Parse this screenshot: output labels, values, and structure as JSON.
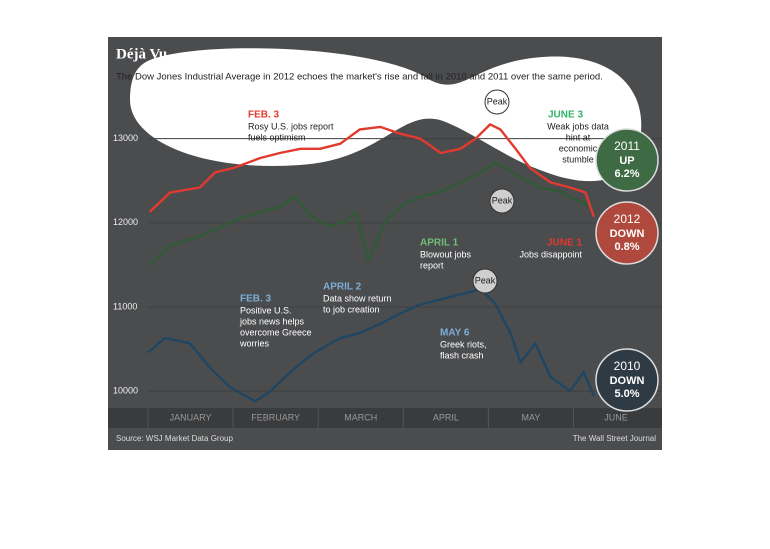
{
  "chart_data": {
    "type": "line",
    "title": "Déjà Vu",
    "subtitle": "The Dow Jones Industrial Average in 2012 echoes the market's rise and fall in 2010 and 2011 over the same period.",
    "source": "Source: WSJ Market Data Group",
    "credit": "The Wall Street Journal",
    "months": [
      "JANUARY",
      "FEBRUARY",
      "MARCH",
      "APRIL",
      "MAY",
      "JUNE"
    ],
    "xlim": [
      0,
      5.3
    ],
    "ylim": [
      9800,
      13400
    ],
    "yticks": [
      10000,
      11000,
      12000,
      13000
    ],
    "grid": true,
    "series": [
      {
        "name": "2011",
        "color": "#2f5a36",
        "x": [
          0.02,
          0.26,
          0.61,
          1.0,
          1.32,
          1.55,
          1.73,
          1.91,
          2.14,
          2.32,
          2.44,
          2.59,
          2.79,
          2.96,
          3.2,
          3.44,
          3.67,
          3.91,
          4.08,
          4.2,
          4.38,
          4.61,
          4.85,
          5.08,
          5.24
        ],
        "values": [
          11500,
          11730,
          11840,
          12020,
          12130,
          12190,
          12310,
          12080,
          11960,
          12020,
          12130,
          11550,
          12020,
          12190,
          12310,
          12370,
          12480,
          12600,
          12710,
          12650,
          12540,
          12420,
          12370,
          12250,
          12180
        ]
      },
      {
        "name": "2010",
        "color": "#1f4763",
        "x": [
          0.0,
          0.2,
          0.49,
          0.73,
          0.96,
          1.26,
          1.44,
          1.55,
          1.73,
          1.96,
          2.26,
          2.49,
          2.73,
          2.96,
          3.2,
          3.44,
          3.67,
          3.91,
          4.08,
          4.26,
          4.38,
          4.55,
          4.73,
          4.96,
          5.12,
          5.24
        ],
        "values": [
          10460,
          10630,
          10570,
          10280,
          10050,
          9880,
          10000,
          10110,
          10280,
          10460,
          10630,
          10690,
          10800,
          10920,
          11030,
          11090,
          11150,
          11210,
          11040,
          10690,
          10340,
          10570,
          10170,
          10000,
          10230,
          9940
        ]
      },
      {
        "name": "2012",
        "color": "#e23a2f",
        "x": [
          0.02,
          0.26,
          0.61,
          0.79,
          1.0,
          1.32,
          1.55,
          1.79,
          2.02,
          2.26,
          2.49,
          2.73,
          2.96,
          3.2,
          3.44,
          3.67,
          3.85,
          4.02,
          4.14,
          4.32,
          4.49,
          4.73,
          4.96,
          5.14,
          5.24
        ],
        "values": [
          12130,
          12360,
          12420,
          12600,
          12650,
          12770,
          12830,
          12880,
          12880,
          12940,
          13110,
          13140,
          13060,
          13000,
          12830,
          12880,
          13000,
          13170,
          13110,
          12880,
          12650,
          12480,
          12420,
          12360,
          12070
        ]
      }
    ],
    "annotations": [
      {
        "title": "FEB. 3",
        "color": "#e23a2f",
        "lines": [
          "Rosy U.S. jobs report",
          "fuels optimism"
        ]
      },
      {
        "title": "JUNE 3",
        "color": "#2fb36a",
        "lines": [
          "Weak jobs data",
          "hint at",
          "economic",
          "stumble"
        ]
      },
      {
        "title": "APRIL 1",
        "color": "#6fbf76",
        "lines": [
          "Blowout jobs",
          "report"
        ]
      },
      {
        "title": "JUNE 1",
        "color": "#e23a2f",
        "lines": [
          "Jobs disappoint"
        ]
      },
      {
        "title": "FEB. 3",
        "color": "#7aaed8",
        "lines": [
          "Positive U.S.",
          "jobs news helps",
          "overcome Greece",
          "worries"
        ]
      },
      {
        "title": "APRIL 2",
        "color": "#7aaed8",
        "lines": [
          "Data show return",
          "to job creation"
        ]
      },
      {
        "title": "MAY 6",
        "color": "#7aaed8",
        "lines": [
          "Greek riots,",
          "flash crash"
        ]
      }
    ],
    "peaks": [
      "Peak",
      "Peak",
      "Peak"
    ],
    "badges": [
      {
        "year": "2011",
        "direction": "UP",
        "change": "6.2%",
        "color": "#3e6b43"
      },
      {
        "year": "2012",
        "direction": "DOWN",
        "change": "0.8%",
        "color": "#b0493d"
      },
      {
        "year": "2010",
        "direction": "DOWN",
        "change": "5.0%",
        "color": "#2e3a44"
      }
    ]
  }
}
